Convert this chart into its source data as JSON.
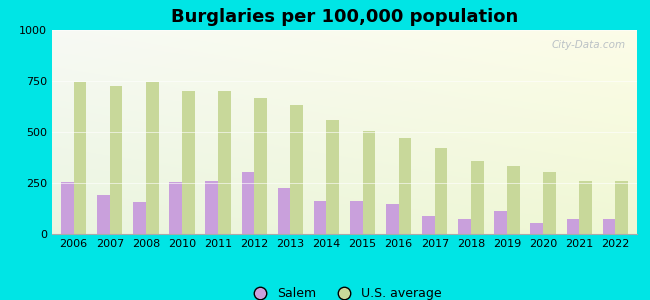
{
  "title": "Burglaries per 100,000 population",
  "years": [
    2006,
    2007,
    2008,
    2010,
    2011,
    2012,
    2013,
    2014,
    2015,
    2016,
    2017,
    2018,
    2019,
    2020,
    2021,
    2022
  ],
  "salem": [
    255,
    190,
    155,
    255,
    260,
    305,
    225,
    160,
    160,
    145,
    90,
    75,
    115,
    55,
    75,
    75
  ],
  "us_avg": [
    745,
    725,
    745,
    700,
    700,
    665,
    630,
    560,
    505,
    470,
    420,
    360,
    335,
    305,
    258,
    260
  ],
  "salem_color": "#c9a0dc",
  "us_avg_color": "#c8d89a",
  "background_color": "#00e5e5",
  "ylim": [
    0,
    1000
  ],
  "yticks": [
    0,
    250,
    500,
    750,
    1000
  ],
  "bar_width": 0.35,
  "legend_salem": "Salem",
  "legend_us": "U.S. average",
  "watermark": "City-Data.com",
  "title_fontsize": 13,
  "tick_fontsize": 8
}
